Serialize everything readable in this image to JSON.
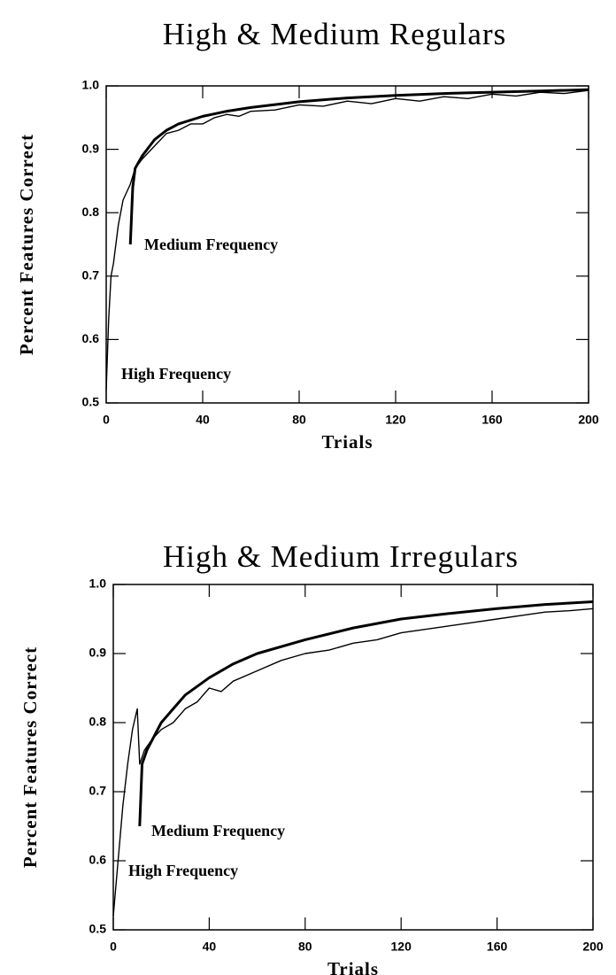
{
  "chart_data": [
    {
      "type": "line",
      "title": "High & Medium Regulars",
      "x_label": "Trials",
      "y_label": "Percent Features Correct",
      "xlim": [
        0,
        200
      ],
      "ylim": [
        0.5,
        1.0
      ],
      "xticks": [
        0,
        40,
        80,
        120,
        160,
        200
      ],
      "yticks": [
        0.5,
        0.6,
        0.7,
        0.8,
        0.9,
        {
          "value": 1,
          "label": "1.0"
        }
      ],
      "series": [
        {
          "name": "High Frequency",
          "color": "#000000",
          "x": [
            0,
            1,
            2,
            3,
            5,
            7,
            10,
            12,
            15,
            20,
            25,
            30,
            35,
            40,
            45,
            50,
            55,
            60,
            70,
            80,
            90,
            100,
            110,
            120,
            130,
            140,
            150,
            160,
            170,
            180,
            190,
            200
          ],
          "values": [
            0.52,
            0.63,
            0.7,
            0.72,
            0.78,
            0.82,
            0.845,
            0.87,
            0.885,
            0.905,
            0.925,
            0.93,
            0.94,
            0.94,
            0.95,
            0.955,
            0.952,
            0.96,
            0.962,
            0.97,
            0.968,
            0.976,
            0.972,
            0.98,
            0.976,
            0.983,
            0.98,
            0.987,
            0.984,
            0.99,
            0.988,
            0.993
          ]
        },
        {
          "name": "Medium Frequency",
          "color": "#000000",
          "x": [
            10,
            11,
            12,
            15,
            20,
            25,
            30,
            40,
            50,
            60,
            80,
            100,
            120,
            140,
            160,
            180,
            200
          ],
          "values": [
            0.75,
            0.84,
            0.87,
            0.89,
            0.915,
            0.93,
            0.94,
            0.952,
            0.96,
            0.966,
            0.975,
            0.981,
            0.985,
            0.988,
            0.99,
            0.992,
            0.994
          ]
        }
      ]
    },
    {
      "type": "line",
      "title": "High & Medium Irregulars",
      "x_label": "Trials",
      "y_label": "Percent Features Correct",
      "xlim": [
        0,
        200
      ],
      "ylim": [
        0.5,
        1.0
      ],
      "xticks": [
        0,
        40,
        80,
        120,
        160,
        200
      ],
      "yticks": [
        0.5,
        0.6,
        0.7,
        0.8,
        0.9,
        {
          "value": 1,
          "label": "1.0"
        }
      ],
      "series": [
        {
          "name": "High Frequency",
          "color": "#000000",
          "x": [
            0,
            1,
            2,
            4,
            6,
            8,
            10,
            11,
            13,
            16,
            20,
            25,
            30,
            35,
            40,
            45,
            50,
            60,
            70,
            80,
            90,
            100,
            110,
            120,
            130,
            140,
            150,
            160,
            170,
            180,
            190,
            200
          ],
          "values": [
            0.52,
            0.56,
            0.6,
            0.68,
            0.74,
            0.79,
            0.82,
            0.74,
            0.76,
            0.775,
            0.79,
            0.8,
            0.82,
            0.83,
            0.85,
            0.845,
            0.86,
            0.875,
            0.89,
            0.9,
            0.905,
            0.915,
            0.92,
            0.93,
            0.935,
            0.94,
            0.945,
            0.95,
            0.955,
            0.96,
            0.962,
            0.965
          ]
        },
        {
          "name": "Medium Frequency",
          "color": "#000000",
          "x": [
            11,
            12,
            14,
            17,
            20,
            25,
            30,
            40,
            50,
            60,
            80,
            100,
            120,
            140,
            160,
            180,
            200
          ],
          "values": [
            0.65,
            0.74,
            0.76,
            0.78,
            0.8,
            0.82,
            0.84,
            0.865,
            0.885,
            0.9,
            0.92,
            0.937,
            0.95,
            0.958,
            0.965,
            0.971,
            0.975
          ]
        }
      ]
    }
  ]
}
